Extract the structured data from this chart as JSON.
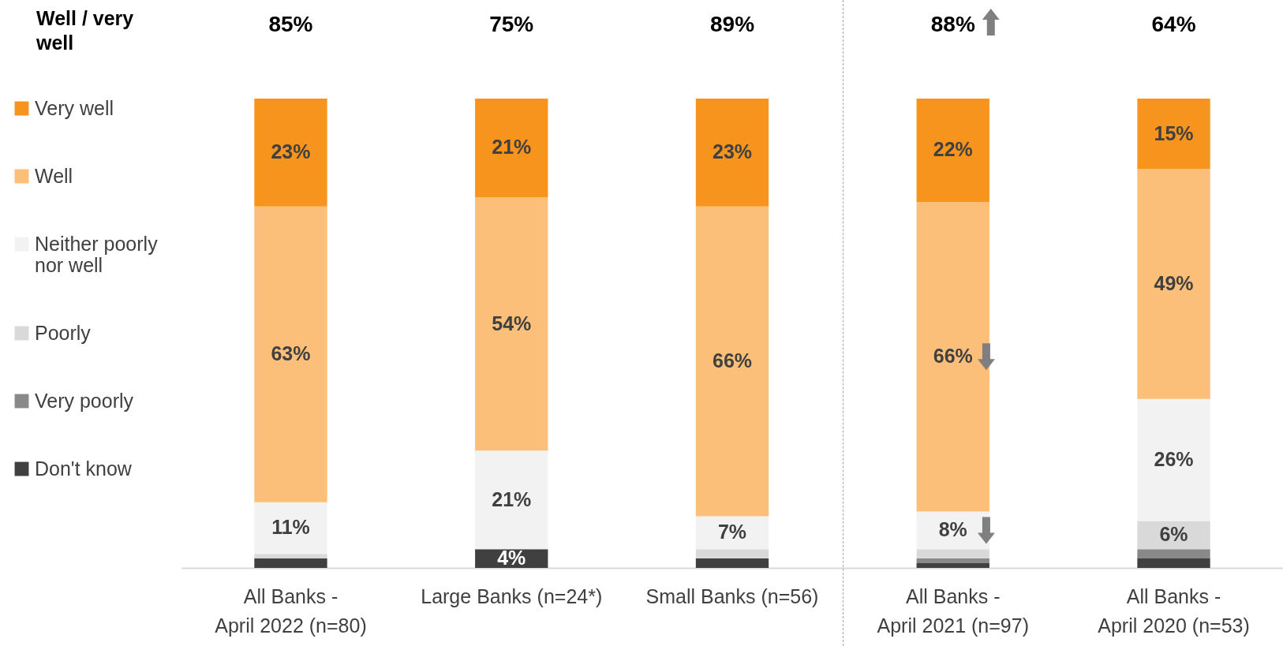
{
  "chart_data": {
    "type": "bar",
    "stacked": true,
    "categories": [
      "All Banks - April 2022 (n=80)",
      "Large Banks (n=24*)",
      "Small Banks (n=56)",
      "All Banks - April 2021 (n=97)",
      "All Banks - April 2020 (n=53)"
    ],
    "ylim": [
      0,
      100
    ],
    "tick_labels": "x",
    "grid": false,
    "legend": "left",
    "series": [
      {
        "name": "Don't know",
        "color": "#404040",
        "values": [
          2,
          4,
          2,
          1,
          2
        ],
        "value_labels": [
          null,
          "4%",
          null,
          null,
          null
        ]
      },
      {
        "name": "Very poorly",
        "color": "#898989",
        "values": [
          0,
          0,
          0,
          1,
          2
        ],
        "value_labels": [
          null,
          null,
          null,
          null,
          null
        ]
      },
      {
        "name": "Poorly",
        "color": "#d9d9d9",
        "values": [
          1,
          0,
          2,
          2,
          6
        ],
        "value_labels": [
          null,
          null,
          null,
          null,
          "6%"
        ]
      },
      {
        "name": "Neither poorly nor well",
        "color": "#f2f2f2",
        "values": [
          11,
          21,
          7,
          8,
          26
        ],
        "value_labels": [
          "11%",
          "21%",
          "7%",
          "8%",
          "26%"
        ]
      },
      {
        "name": "Well",
        "color": "#fbbf7a",
        "values": [
          63,
          54,
          66,
          66,
          49
        ],
        "value_labels": [
          "63%",
          "54%",
          "66%",
          "66%",
          "49%"
        ]
      },
      {
        "name": "Very well",
        "color": "#f7941d",
        "values": [
          23,
          21,
          23,
          22,
          15
        ],
        "value_labels": [
          "23%",
          "21%",
          "23%",
          "22%",
          "15%"
        ]
      }
    ],
    "annotations": [
      "Well / very well",
      "85%",
      "75%",
      "89%",
      "88%",
      "64%"
    ]
  }
}
